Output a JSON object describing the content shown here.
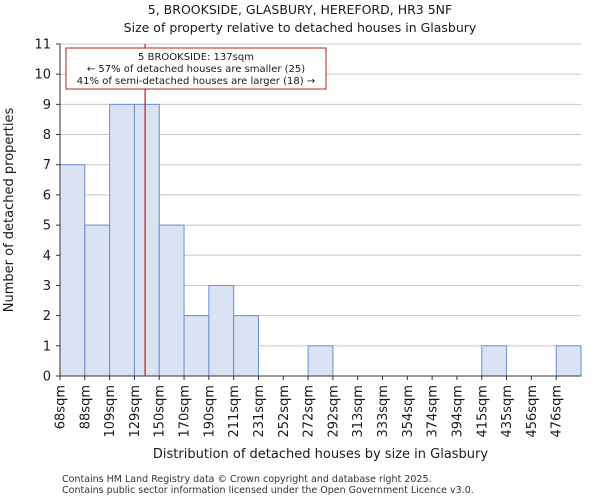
{
  "title_line1": "5, BROOKSIDE, GLASBURY, HEREFORD, HR3 5NF",
  "title_line2": "Size of property relative to detached houses in Glasbury",
  "footer_line1": "Contains HM Land Registry data © Crown copyright and database right 2025.",
  "footer_line2": "Contains public sector information licensed under the Open Government Licence v3.0.",
  "chart_data": {
    "type": "bar",
    "title": "Size of property relative to detached houses in Glasbury",
    "xlabel": "Distribution of detached houses by size in Glasbury",
    "ylabel": "Number of detached properties",
    "categories": [
      "68sqm",
      "88sqm",
      "109sqm",
      "129sqm",
      "150sqm",
      "170sqm",
      "190sqm",
      "211sqm",
      "231sqm",
      "252sqm",
      "272sqm",
      "292sqm",
      "313sqm",
      "333sqm",
      "354sqm",
      "374sqm",
      "394sqm",
      "415sqm",
      "435sqm",
      "456sqm",
      "476sqm"
    ],
    "values": [
      7,
      5,
      9,
      9,
      5,
      2,
      3,
      2,
      0,
      0,
      1,
      0,
      0,
      0,
      0,
      0,
      0,
      1,
      0,
      0,
      1
    ],
    "ylim": [
      0,
      11
    ],
    "yticks": [
      0,
      1,
      2,
      3,
      4,
      5,
      6,
      7,
      8,
      9,
      10,
      11
    ],
    "bar_color": "#dae3f3",
    "bar_edge": "#6a8fcf",
    "marker": {
      "value_bin_position": 3.43,
      "color": "#b22222",
      "label_line1": "5 BROOKSIDE: 137sqm",
      "label_line2": "← 57% of detached houses are smaller (25)",
      "label_line3": "41% of semi-detached houses are larger (18) →"
    }
  }
}
